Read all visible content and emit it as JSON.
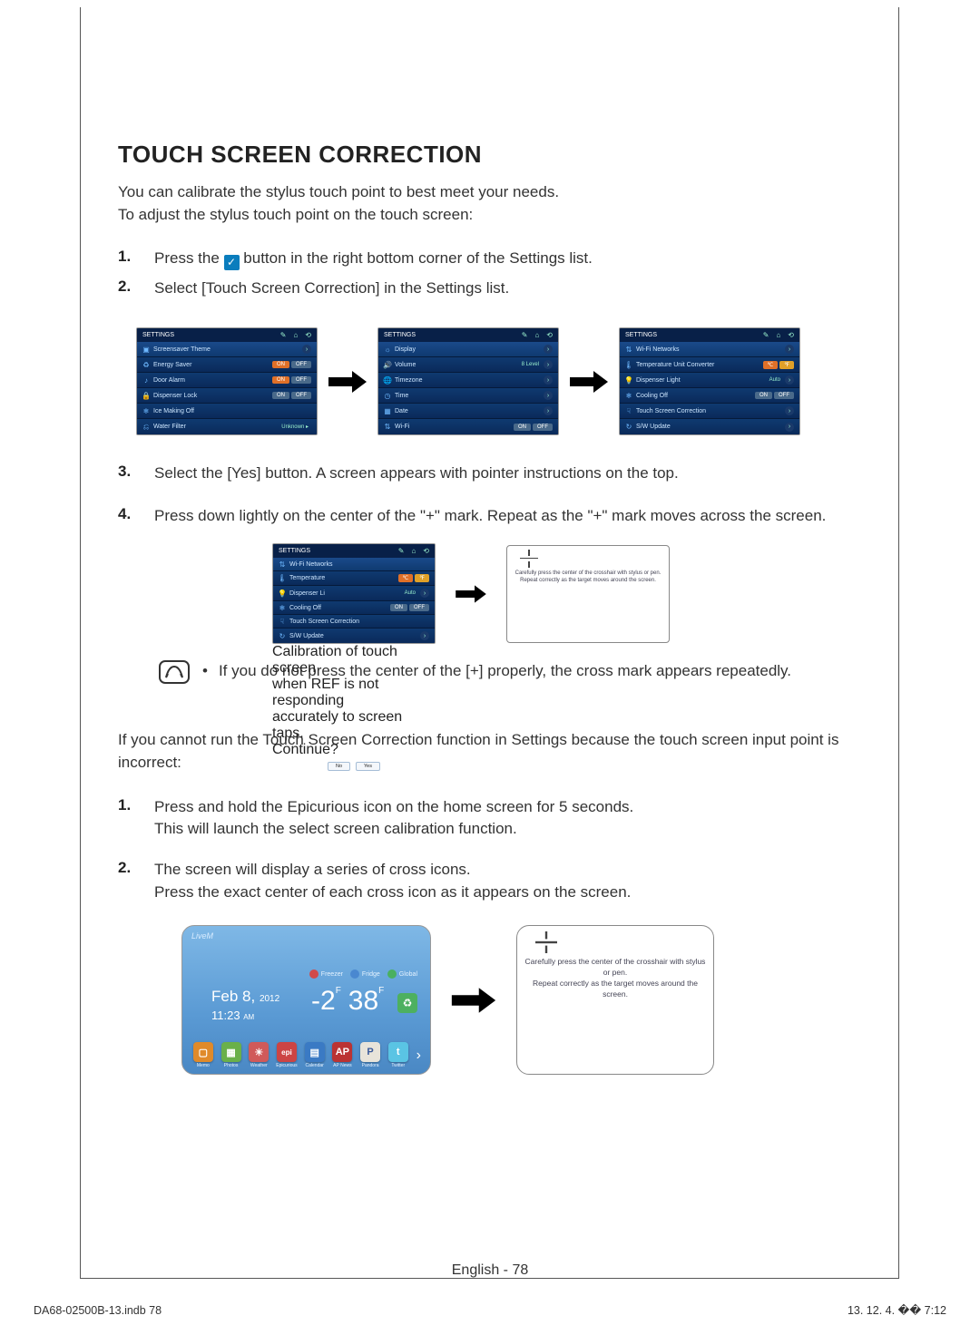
{
  "title": "TOUCH SCREEN CORRECTION",
  "intro": {
    "line1": "You can calibrate the stylus touch point to best meet your needs.",
    "line2": "To adjust the stylus touch point on the touch screen:"
  },
  "steps1": {
    "s1a": "Press the ",
    "s1b": " button in the right bottom corner of the Settings list.",
    "s2": "Select [Touch Screen Correction] in the Settings list."
  },
  "panel_header": "SETTINGS",
  "panel1": {
    "r1": "Screensaver Theme",
    "r2": "Energy Saver",
    "r3": "Door Alarm",
    "r4": "Dispenser Lock",
    "r5": "Ice Making Off",
    "r6": "Water Filter",
    "footer": "Unknown ▸"
  },
  "panel2": {
    "r1": "Display",
    "r2": "Volume",
    "r2v": "8 Level",
    "r3": "Timezone",
    "r4": "Time",
    "r5": "Date",
    "r6": "Wi-Fi"
  },
  "panel3": {
    "r1": "Wi-Fi Networks",
    "r2": "Temperature Unit Converter",
    "r3": "Dispenser Light",
    "r3v": "Auto",
    "r4": "Cooling Off",
    "r5": "Touch Screen Correction",
    "r6": "S/W Update"
  },
  "pill_on": "ON",
  "pill_off": "OFF",
  "steps2": {
    "s3": "Select the [Yes] button. A screen appears with pointer instructions on the top.",
    "s4": "Press down lightly on the center of the \"+\" mark. Repeat as the \"+\" mark moves across the screen."
  },
  "dialog": {
    "l1": "Calibration of touch screen",
    "l2": "when REF is not responding",
    "l3": "accurately to screen taps.",
    "l4": "Continue?",
    "no": "No",
    "yes": "Yes"
  },
  "calib": {
    "l1": "Carefully press the center of the crosshair with stylus or pen.",
    "l2": "Repeat correctly as the target moves around the screen."
  },
  "note": "If you do not press the center of the [+] properly, the cross mark appears repeatedly.",
  "para2": "If you cannot run the Touch Screen Correction function in Settings because the touch screen input point is incorrect:",
  "steps3": {
    "s1a": "Press and hold the Epicurious icon on the home screen for 5 seconds.",
    "s1b": "This will launch the select screen calibration function.",
    "s2a": "The screen will display a series of cross icons.",
    "s2b": "Press the exact center of each cross icon as it appears on the screen."
  },
  "home": {
    "brand": "LiveM",
    "chips": {
      "a": "Freezer",
      "b": "Fridge",
      "c": "Global"
    },
    "date": "Feb 8,",
    "year": "2012",
    "time": "11:23",
    "ampm": "AM",
    "t1": "-2",
    "t1u": "F",
    "t2": "38",
    "t2u": "F",
    "dock": [
      "Memo",
      "Photos",
      "Weather",
      "Epicurious",
      "Calendar",
      "AP News",
      "Pandora",
      "Twitter"
    ]
  },
  "dock_colors": [
    "#e08a2a",
    "#6ab04a",
    "#d05a5a",
    "#c44",
    "#3a7ac4",
    "#b33",
    "#e8e4da",
    "#5ac4e4"
  ],
  "dock_glyph": [
    "▢",
    "▦",
    "☀",
    "epi",
    "▤",
    "AP",
    "P",
    "t"
  ],
  "footer": {
    "center": "English - 78",
    "left": "DA68-02500B-13.indb   78",
    "right": "13. 12. 4.   �� 7:12"
  }
}
